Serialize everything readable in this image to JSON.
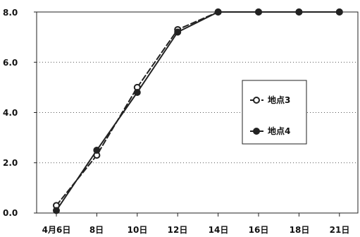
{
  "chart_data": {
    "type": "line",
    "title": "",
    "xlabel": "",
    "ylabel": "",
    "x_tick_labels": [
      "4月6日",
      "8日",
      "10日",
      "12日",
      "14日",
      "16日",
      "18日",
      "21日"
    ],
    "y_tick_labels": [
      "0.0",
      "2.0",
      "4.0",
      "6.0",
      "8.0"
    ],
    "ylim": [
      0,
      8
    ],
    "y_ticks": [
      0,
      2,
      4,
      6,
      8
    ],
    "grid": "horizontal-dotted",
    "legend_position": "right",
    "series": [
      {
        "name": "地点3",
        "line_style": "dashed",
        "marker": "open-circle",
        "color": "#222222",
        "values": [
          0.3,
          2.3,
          5.0,
          7.3,
          8.0,
          8.0,
          8.0,
          8.0
        ]
      },
      {
        "name": "地点4",
        "line_style": "solid",
        "marker": "filled-circle",
        "color": "#222222",
        "values": [
          0.1,
          2.5,
          4.8,
          7.2,
          8.0,
          8.0,
          8.0,
          8.0
        ]
      }
    ]
  }
}
